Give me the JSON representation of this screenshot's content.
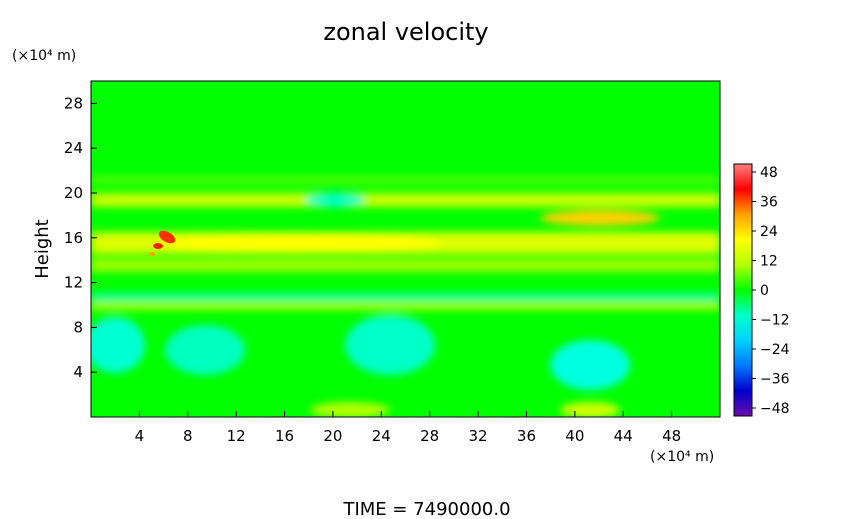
{
  "chart_data": {
    "type": "heatmap",
    "title": "zonal velocity",
    "xlabel": "",
    "ylabel": "Height",
    "x_unit": "(×10⁴ m)",
    "y_unit": "(×10⁴ m)",
    "xlim": [
      0,
      52
    ],
    "ylim": [
      0,
      30
    ],
    "xticks": [
      "4",
      "8",
      "12",
      "16",
      "20",
      "24",
      "28",
      "32",
      "36",
      "40",
      "44",
      "48"
    ],
    "yticks": [
      "4",
      "8",
      "12",
      "16",
      "20",
      "24",
      "28"
    ],
    "colorbar": {
      "ticks": [
        "48",
        "36",
        "24",
        "12",
        "0",
        "−12",
        "−24",
        "−36",
        "−48"
      ],
      "min": -48,
      "max": 48,
      "colors": [
        "#6a0dad",
        "#0000cd",
        "#0078ff",
        "#00d2ff",
        "#00ffc8",
        "#00ff00",
        "#b4ff00",
        "#ffff00",
        "#ffa000",
        "#ff0000",
        "#ff8080"
      ]
    },
    "grid": false,
    "field_description_bands": [
      {
        "y_range": [
          20,
          30
        ],
        "approx_value": 0
      },
      {
        "y_range": [
          17,
          20
        ],
        "approx_value": 14
      },
      {
        "y_range": [
          13,
          17
        ],
        "approx_value": 18
      },
      {
        "y_range": [
          10,
          13
        ],
        "approx_value": 6
      },
      {
        "y_range": [
          0,
          10
        ],
        "approx_value": -6
      }
    ],
    "annotation": "TIME = 7490000.0"
  }
}
